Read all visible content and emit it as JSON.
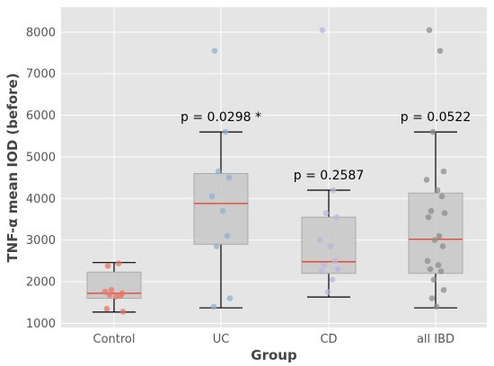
{
  "chart_data": {
    "type": "box",
    "xlabel": "Group",
    "ylabel": "TNF-α mean IOD (before)",
    "ylim": [
      900,
      8600
    ],
    "yticks": [
      1000,
      2000,
      3000,
      4000,
      5000,
      6000,
      7000,
      8000
    ],
    "grid": true,
    "categories": [
      "Control",
      "UC",
      "CD",
      "all IBD"
    ],
    "colors": {
      "background": "#e5e5e5",
      "grid": "#ffffff",
      "box": "#c8c8c8",
      "median": "#e24a33",
      "whisker": "#000000"
    },
    "groups": [
      {
        "name": "Control",
        "point_color": "#e8746a",
        "min": 1270,
        "q1": 1600,
        "median": 1720,
        "q3": 2230,
        "max": 2460,
        "annotation": "",
        "points": [
          2380,
          2440,
          1800,
          1720,
          1760,
          1640,
          1660,
          1680,
          1280,
          1350
        ]
      },
      {
        "name": "UC",
        "point_color": "#8fb2cc",
        "min": 1370,
        "q1": 2900,
        "median": 3880,
        "q3": 4600,
        "max": 5600,
        "annotation": "p = 0.0298 *",
        "points": [
          7550,
          5600,
          4650,
          4500,
          4050,
          3700,
          3100,
          2850,
          1600,
          1400
        ]
      },
      {
        "name": "CD",
        "point_color": "#b8b5dc",
        "min": 1630,
        "q1": 2200,
        "median": 2480,
        "q3": 3550,
        "max": 4200,
        "annotation": "p = 0.2587",
        "points": [
          8050,
          4200,
          3650,
          3550,
          3000,
          2850,
          2500,
          2400,
          2300,
          2250,
          2050,
          1750
        ]
      },
      {
        "name": "all IBD",
        "point_color": "#8c8c8c",
        "min": 1370,
        "q1": 2200,
        "median": 3020,
        "q3": 4130,
        "max": 5600,
        "annotation": "p = 0.0522",
        "points": [
          8050,
          7550,
          5600,
          4650,
          4450,
          4200,
          4050,
          3700,
          3650,
          3550,
          3100,
          3000,
          2850,
          2500,
          2400,
          2300,
          2250,
          2050,
          1800,
          1600,
          1400
        ]
      }
    ]
  }
}
